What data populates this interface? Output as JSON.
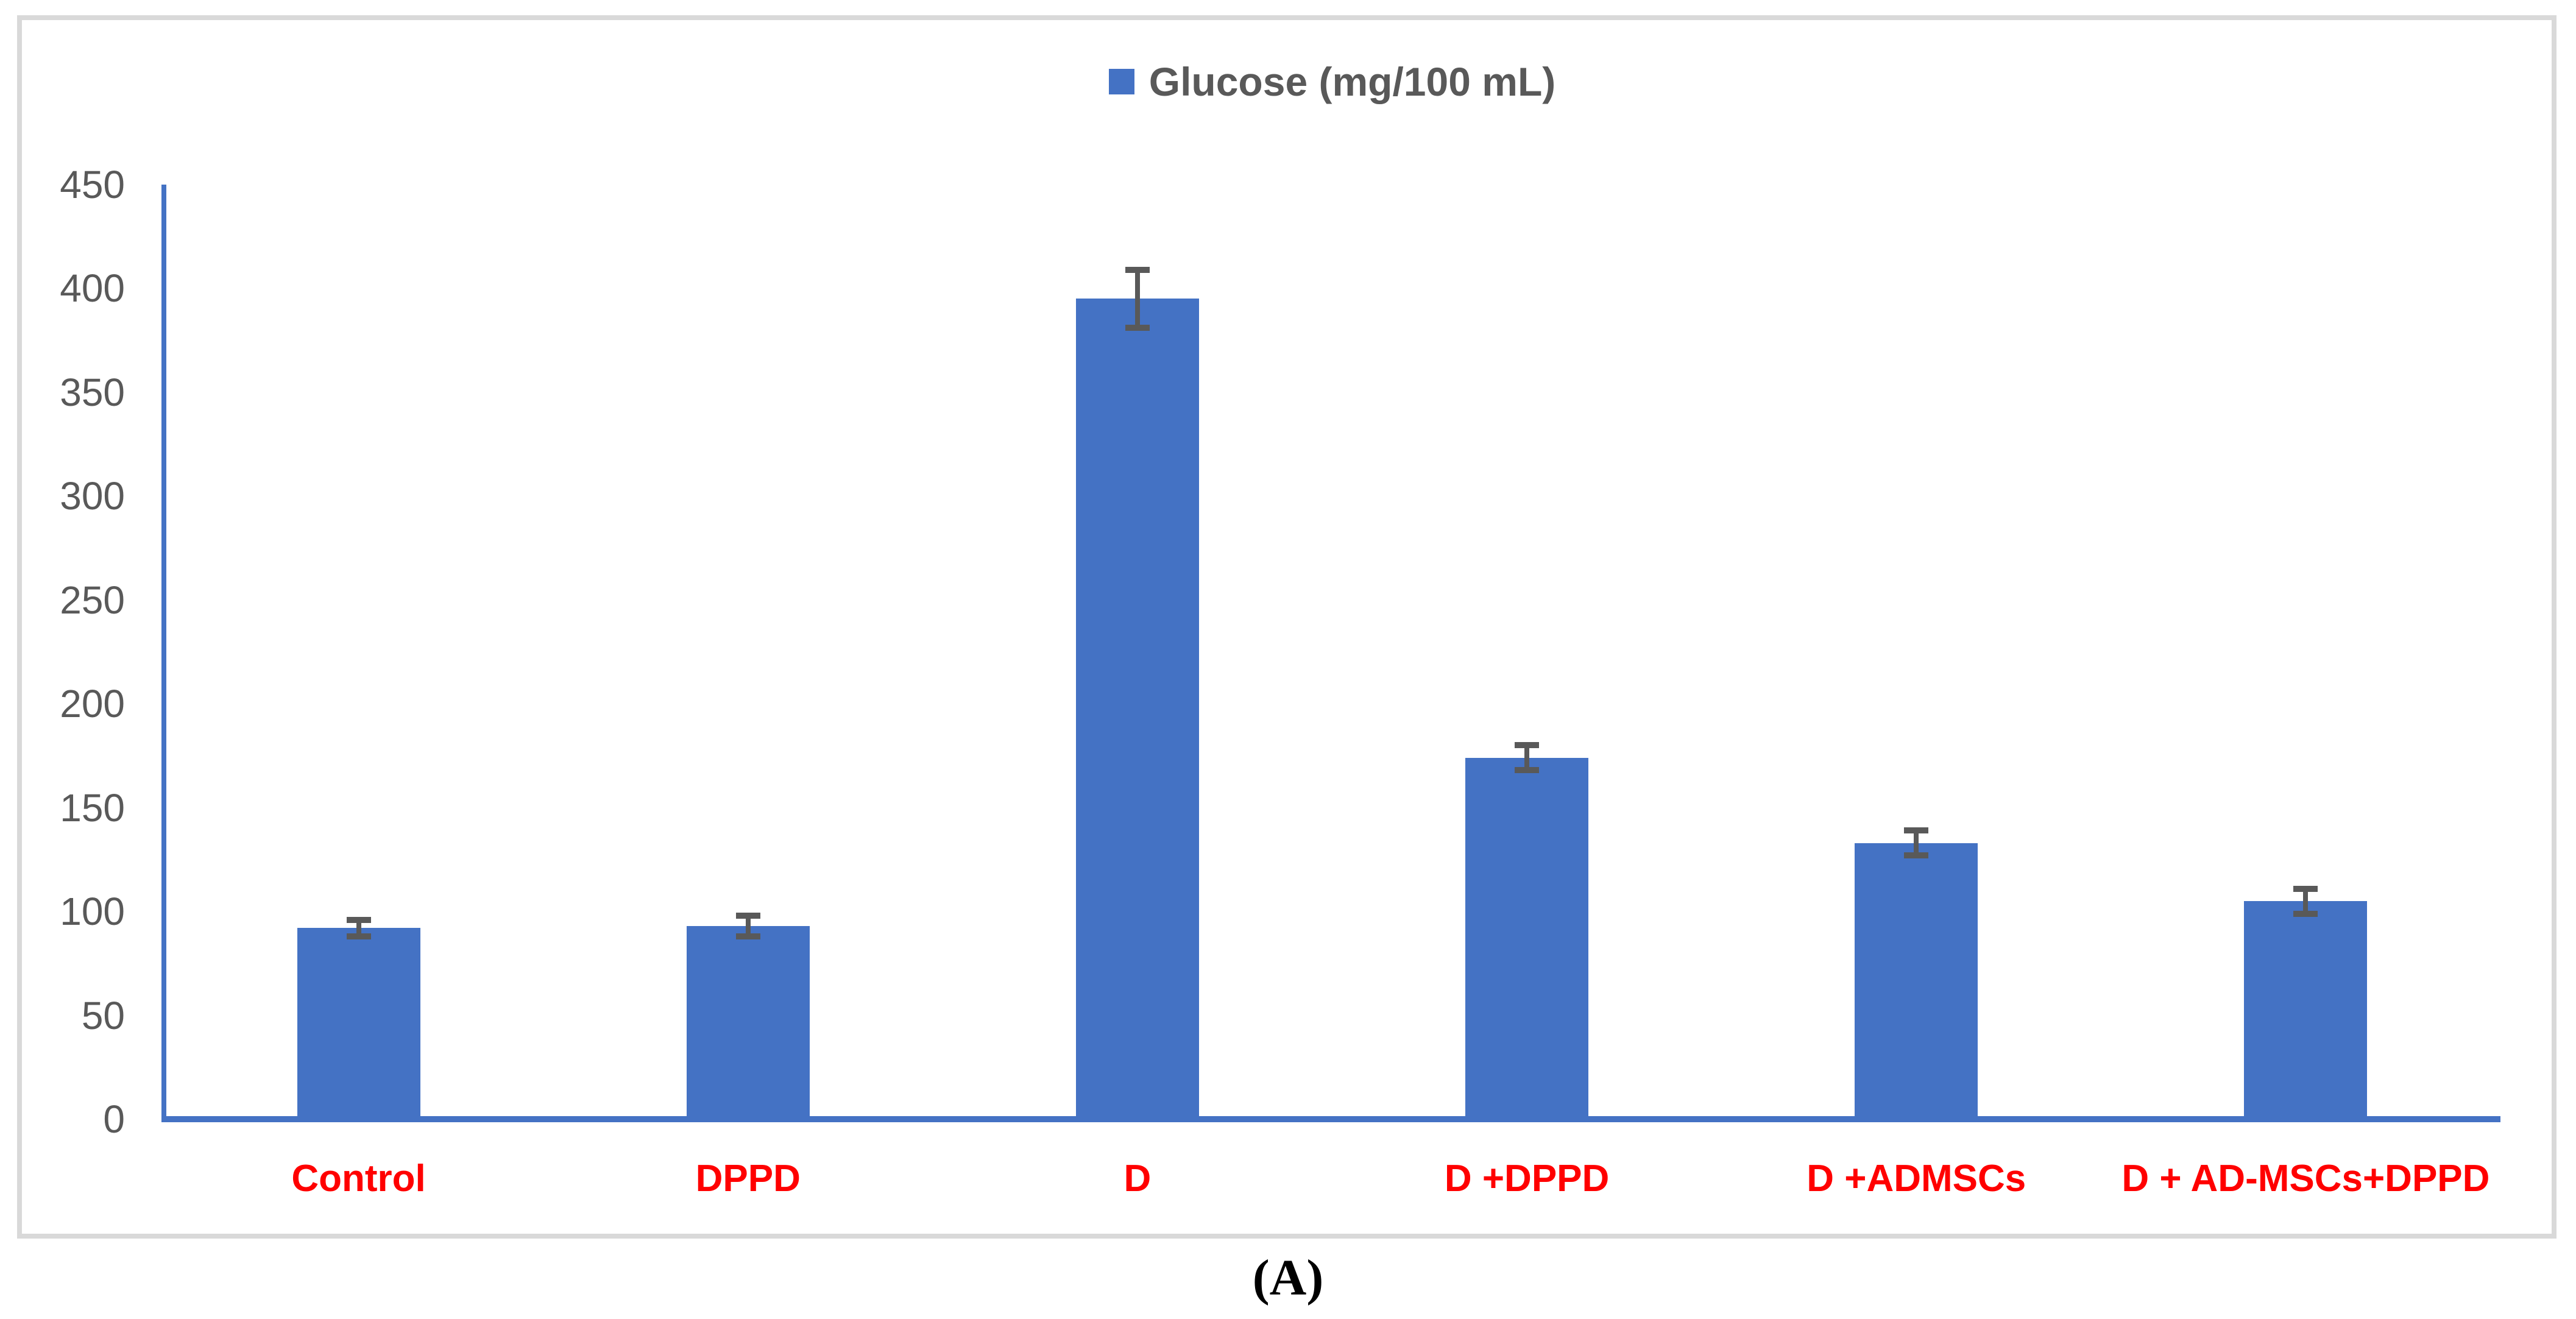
{
  "figure": {
    "caption": "(A)"
  },
  "chart_data": {
    "type": "bar",
    "title": "",
    "legend": {
      "label": "Glucose (mg/100 mL)",
      "position": "top-center",
      "marker_color": "#4472C4",
      "text_color": "#595959"
    },
    "categories": [
      "Control",
      "DPPD",
      "D",
      "D +DPPD",
      "D +ADMSCs",
      "D + AD-MSCs+DPPD"
    ],
    "series": [
      {
        "name": "Glucose (mg/100 mL)",
        "values": [
          92,
          93,
          395,
          174,
          133,
          105
        ],
        "error_bars": [
          4,
          5,
          14,
          6,
          6,
          6
        ]
      }
    ],
    "xlabel": "",
    "ylabel": "",
    "ylim": [
      0,
      450
    ],
    "yticks": [
      0,
      50,
      100,
      150,
      200,
      250,
      300,
      350,
      400,
      450
    ],
    "grid": false,
    "plot_background": "#ffffff",
    "bar_color": "#4472C4",
    "axis_color": "#4472C4",
    "error_bar_color": "#595959",
    "ytick_label_color": "#595959",
    "category_label_color": "#FF0000"
  }
}
